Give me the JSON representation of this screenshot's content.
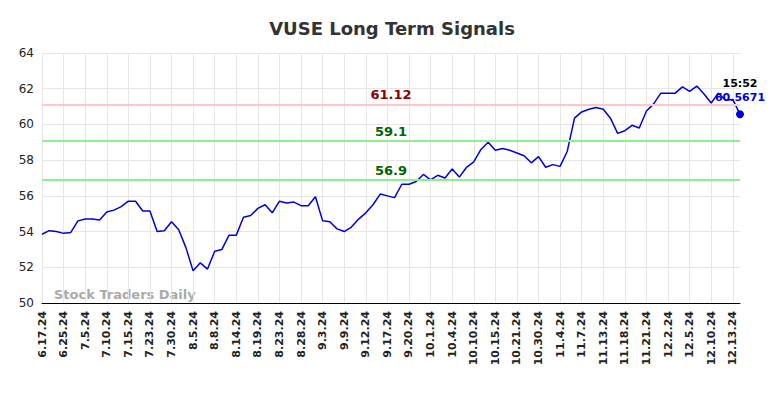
{
  "chart_data": {
    "type": "line",
    "title": "VUSE Long Term Signals",
    "categories": [
      "6.17.24",
      null,
      null,
      "6.25.24",
      null,
      null,
      "7.5.24",
      null,
      null,
      "7.10.24",
      null,
      null,
      "7.15.24",
      null,
      null,
      "7.23.24",
      null,
      null,
      "7.30.24",
      null,
      null,
      "8.5.24",
      null,
      null,
      "8.8.24",
      null,
      null,
      "8.14.24",
      null,
      null,
      "8.19.24",
      null,
      null,
      "8.23.24",
      null,
      null,
      "8.28.24",
      null,
      null,
      "9.3.24",
      null,
      null,
      "9.9.24",
      null,
      null,
      "9.12.24",
      null,
      null,
      "9.17.24",
      null,
      null,
      "9.20.24",
      null,
      null,
      "10.1.24",
      null,
      null,
      "10.4.24",
      null,
      null,
      "10.10.24",
      null,
      null,
      "10.15.24",
      null,
      null,
      "10.21.24",
      null,
      null,
      "10.30.24",
      null,
      null,
      "11.4.24",
      null,
      null,
      "11.7.24",
      null,
      null,
      "11.13.24",
      null,
      null,
      "11.18.24",
      null,
      null,
      "11.21.24",
      null,
      null,
      "12.2.24",
      null,
      null,
      "12.5.24",
      null,
      null,
      "12.10.24",
      null,
      null,
      "12.13.24",
      null
    ],
    "series": [
      {
        "color": "#0000dd",
        "values": [
          53.85,
          54.05,
          54.0,
          53.9,
          53.95,
          54.6,
          54.7,
          54.7,
          54.65,
          55.1,
          55.2,
          55.4,
          55.7,
          55.7,
          55.15,
          55.15,
          54.0,
          54.05,
          54.55,
          54.1,
          53.1,
          51.8,
          52.25,
          51.9,
          52.9,
          53.0,
          53.8,
          53.8,
          54.8,
          54.9,
          55.3,
          55.5,
          55.05,
          55.7,
          55.6,
          55.65,
          55.45,
          55.45,
          55.95,
          54.6,
          54.55,
          54.15,
          54.0,
          54.25,
          54.7,
          55.05,
          55.5,
          56.1,
          56.0,
          55.9,
          56.65,
          56.65,
          56.8,
          57.2,
          56.9,
          57.15,
          57.0,
          57.5,
          57.05,
          57.6,
          57.9,
          58.6,
          59.0,
          58.55,
          58.65,
          58.55,
          58.4,
          58.25,
          57.85,
          58.2,
          57.6,
          57.75,
          57.65,
          58.5,
          60.35,
          60.7,
          60.85,
          60.95,
          60.85,
          60.35,
          59.5,
          59.65,
          59.95,
          59.8,
          60.75,
          61.15,
          61.75,
          61.75,
          61.75,
          62.1,
          61.85,
          62.15,
          61.7,
          61.2,
          61.75,
          61.35,
          61.4,
          60.5671
        ]
      }
    ],
    "ylim": [
      50,
      64
    ],
    "yticks": [
      50,
      52,
      54,
      56,
      58,
      60,
      62,
      64
    ],
    "grid": true,
    "annotations": {
      "lines": [
        {
          "value": 61.12,
          "label": "61.12",
          "color": "#ffc8c8",
          "label_color": "#8b0000"
        },
        {
          "value": 59.1,
          "label": "59.1",
          "color": "#90ee90",
          "label_color": "#006400"
        },
        {
          "value": 56.9,
          "label": "56.9",
          "color": "#90ee90",
          "label_color": "#006400"
        }
      ],
      "last_point": {
        "label": "15:52"
      },
      "watermark": "Stock Traders Daily"
    }
  }
}
